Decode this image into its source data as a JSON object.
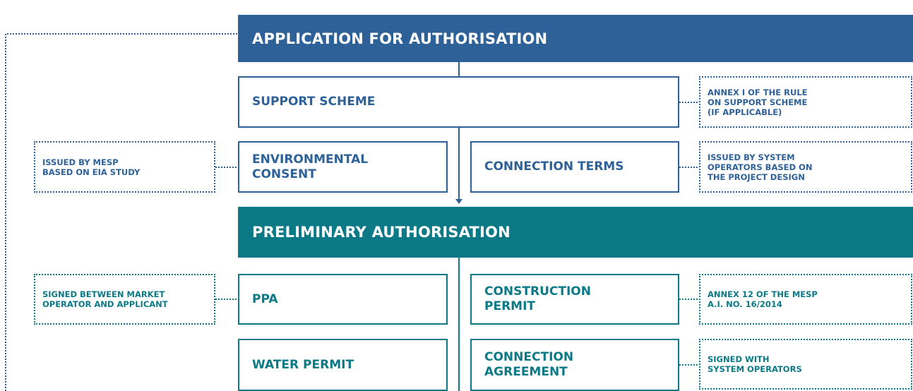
{
  "header": {
    "title": "APPLICATION FOR AUTHORISATION"
  },
  "support_scheme": {
    "label": [
      "SUPPORT SCHEME"
    ],
    "note": [
      "ANNEX I OF THE RULE",
      "ON SUPPORT SCHEME",
      "(IF APPLICABLE)"
    ]
  },
  "environmental_consent": {
    "label": [
      "ENVIRONMENTAL",
      "CONSENT"
    ],
    "note": [
      "ISSUED BY MESP",
      "BASED ON EIA STUDY"
    ]
  },
  "connection_terms": {
    "label": [
      "CONNECTION TERMS"
    ],
    "note": [
      "ISSUED BY SYSTEM",
      "OPERATORS BASED ON",
      "THE PROJECT DESIGN"
    ]
  },
  "preliminary": {
    "title": "PRELIMINARY AUTHORISATION"
  },
  "ppa": {
    "label": [
      "PPA"
    ],
    "note": [
      "SIGNED BETWEEN MARKET",
      "OPERATOR AND APPLICANT"
    ]
  },
  "construction_permit": {
    "label": [
      "CONSTRUCTION",
      "PERMIT"
    ],
    "note": [
      "ANNEX 12 OF THE MESP",
      "A.I. NO. 16/2014"
    ]
  },
  "water_permit": {
    "label": [
      "WATER PERMIT"
    ]
  },
  "connection_agreement": {
    "label": [
      "CONNECTION",
      "AGREEMENT"
    ],
    "note": [
      "SIGNED WITH",
      "SYSTEM OPERATORS"
    ]
  }
}
